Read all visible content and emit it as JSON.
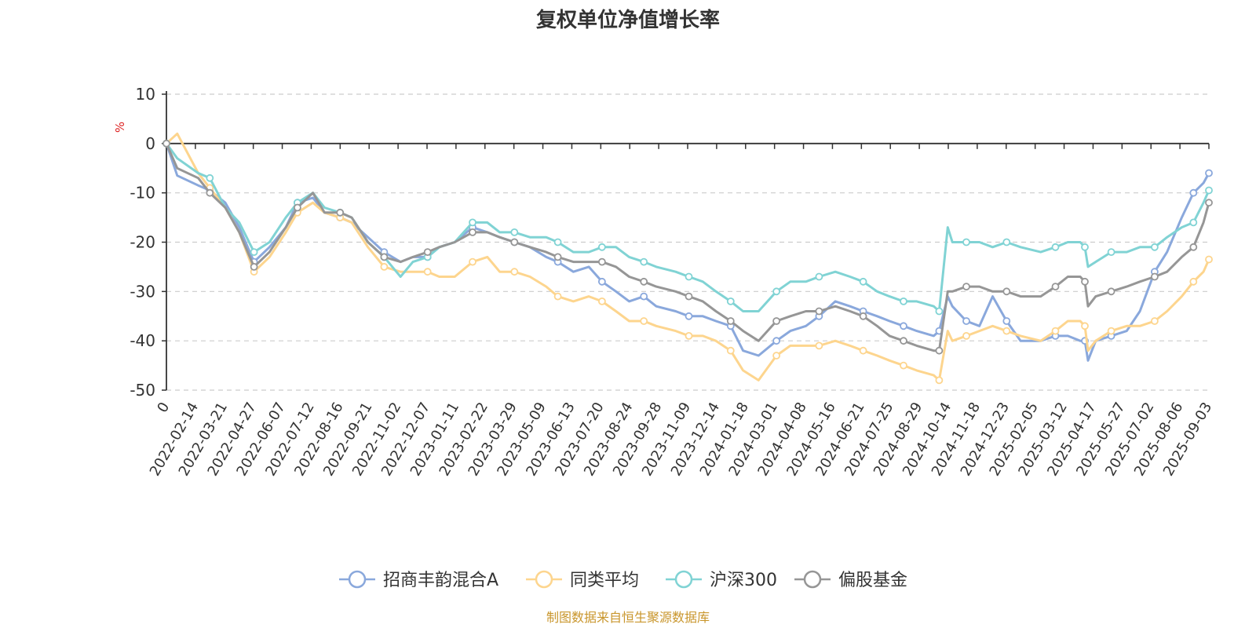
{
  "chart_data": {
    "type": "line",
    "title": "复权单位净值增长率",
    "ylabel": "%",
    "ylim": [
      -50,
      10
    ],
    "yticks": [
      "10",
      "0",
      "-10",
      "-20",
      "-30",
      "-40",
      "-50"
    ],
    "grid": true,
    "legend": "bottom-center",
    "x_ticks": [
      "0",
      "2022-02-14",
      "2022-03-21",
      "2022-04-27",
      "2022-06-07",
      "2022-07-12",
      "2022-08-16",
      "2022-09-21",
      "2022-11-02",
      "2022-12-07",
      "2023-01-11",
      "2023-02-22",
      "2023-03-29",
      "2023-05-09",
      "2023-06-13",
      "2023-07-20",
      "2023-08-24",
      "2023-09-28",
      "2023-11-09",
      "2023-12-14",
      "2024-01-18",
      "2024-03-01",
      "2024-04-08",
      "2024-05-16",
      "2024-06-21",
      "2024-07-25",
      "2024-08-29",
      "2024-10-14",
      "2024-11-18",
      "2024-12-23",
      "2025-02-05",
      "2025-03-12",
      "2025-04-17",
      "2025-05-27",
      "2025-07-02",
      "2025-08-06",
      "2025-09-03"
    ],
    "x": [
      "2022-01-04",
      "2022-01-18",
      "2022-02-14",
      "2022-03-01",
      "2022-03-21",
      "2022-04-08",
      "2022-04-27",
      "2022-05-17",
      "2022-06-07",
      "2022-06-22",
      "2022-07-12",
      "2022-07-27",
      "2022-08-16",
      "2022-08-31",
      "2022-09-21",
      "2022-10-12",
      "2022-11-02",
      "2022-11-18",
      "2022-12-07",
      "2022-12-22",
      "2023-01-11",
      "2023-02-03",
      "2023-02-22",
      "2023-03-10",
      "2023-03-29",
      "2023-04-18",
      "2023-05-09",
      "2023-05-24",
      "2023-06-13",
      "2023-07-03",
      "2023-07-20",
      "2023-08-07",
      "2023-08-24",
      "2023-09-12",
      "2023-09-28",
      "2023-10-23",
      "2023-11-09",
      "2023-11-27",
      "2023-12-14",
      "2024-01-02",
      "2024-01-18",
      "2024-02-07",
      "2024-03-01",
      "2024-03-19",
      "2024-04-08",
      "2024-04-25",
      "2024-05-16",
      "2024-06-04",
      "2024-06-21",
      "2024-07-09",
      "2024-07-25",
      "2024-08-12",
      "2024-08-29",
      "2024-09-20",
      "2024-09-27",
      "2024-10-08",
      "2024-10-14",
      "2024-11-01",
      "2024-11-18",
      "2024-12-05",
      "2024-12-23",
      "2025-01-10",
      "2025-02-05",
      "2025-02-24",
      "2025-03-12",
      "2025-03-28",
      "2025-04-03",
      "2025-04-07",
      "2025-04-17",
      "2025-05-07",
      "2025-05-27",
      "2025-06-13",
      "2025-07-02",
      "2025-07-18",
      "2025-08-06",
      "2025-08-21",
      "2025-09-03",
      "2025-09-10"
    ],
    "series": [
      {
        "name": "招商丰韵混合A",
        "color": "#8aa8dc",
        "values": [
          0,
          -6.5,
          -8.5,
          -9.5,
          -12,
          -17,
          -24,
          -21,
          -17,
          -12,
          -11,
          -14,
          -15,
          -16,
          -19,
          -22,
          -24,
          -23,
          -23,
          -21,
          -20,
          -17,
          -18,
          -19,
          -20,
          -21,
          -23,
          -24,
          -26,
          -25,
          -28,
          -30,
          -32,
          -31,
          -33,
          -34,
          -35,
          -35,
          -36,
          -37,
          -42,
          -43,
          -40,
          -38,
          -37,
          -35,
          -32,
          -33,
          -34,
          -35,
          -36,
          -37,
          -38,
          -39,
          -38,
          -31,
          -33,
          -36,
          -37,
          -31,
          -36,
          -40,
          -40,
          -39,
          -39,
          -40,
          -40,
          -44,
          -40,
          -39,
          -38,
          -34,
          -26,
          -22,
          -15,
          -10,
          -8,
          -6
        ]
      },
      {
        "name": "同类平均",
        "color": "#fdd58e",
        "values": [
          0,
          2,
          -6,
          -9,
          -13,
          -18,
          -26,
          -23,
          -18,
          -14,
          -12,
          -14,
          -15,
          -16,
          -21,
          -25,
          -26,
          -26,
          -26,
          -27,
          -27,
          -24,
          -23,
          -26,
          -26,
          -27,
          -29,
          -31,
          -32,
          -31,
          -32,
          -34,
          -36,
          -36,
          -37,
          -38,
          -39,
          -39,
          -40,
          -42,
          -46,
          -48,
          -43,
          -41,
          -41,
          -41,
          -40,
          -41,
          -42,
          -43,
          -44,
          -45,
          -46,
          -47,
          -48,
          -38,
          -40,
          -39,
          -38,
          -37,
          -38,
          -39,
          -40,
          -38,
          -36,
          -36,
          -37,
          -42,
          -40,
          -38,
          -37,
          -37,
          -36,
          -34,
          -31,
          -28,
          -26,
          -23.5
        ]
      },
      {
        "name": "沪深300",
        "color": "#80d3d4",
        "values": [
          0,
          -3,
          -6,
          -7,
          -13,
          -16,
          -22,
          -20,
          -15,
          -12,
          -10,
          -13,
          -14,
          -15,
          -20,
          -23,
          -27,
          -24,
          -23,
          -21,
          -20,
          -16,
          -16,
          -18,
          -18,
          -19,
          -19,
          -20,
          -22,
          -22,
          -21,
          -21,
          -23,
          -24,
          -25,
          -26,
          -27,
          -28,
          -30,
          -32,
          -34,
          -34,
          -30,
          -28,
          -28,
          -27,
          -26,
          -27,
          -28,
          -30,
          -31,
          -32,
          -32,
          -33,
          -34,
          -17,
          -20,
          -20,
          -20,
          -21,
          -20,
          -21,
          -22,
          -21,
          -20,
          -20,
          -21,
          -25,
          -24,
          -22,
          -22,
          -21,
          -21,
          -19,
          -17,
          -16,
          -12,
          -9.5
        ]
      },
      {
        "name": "偏股基金",
        "color": "#969696",
        "values": [
          0,
          -5,
          -7,
          -10,
          -13,
          -18,
          -25,
          -22,
          -17,
          -13,
          -10,
          -14,
          -14,
          -15,
          -20,
          -23,
          -24,
          -23,
          -22,
          -21,
          -20,
          -18,
          -18,
          -19,
          -20,
          -21,
          -22,
          -23,
          -24,
          -24,
          -24,
          -25,
          -27,
          -28,
          -29,
          -30,
          -31,
          -32,
          -34,
          -36,
          -38,
          -40,
          -36,
          -35,
          -34,
          -34,
          -33,
          -34,
          -35,
          -37,
          -39,
          -40,
          -41,
          -42,
          -42,
          -30,
          -30,
          -29,
          -29,
          -30,
          -30,
          -31,
          -31,
          -29,
          -27,
          -27,
          -28,
          -33,
          -31,
          -30,
          -29,
          -28,
          -27,
          -26,
          -23,
          -21,
          -16,
          -12
        ]
      }
    ]
  },
  "source_note": "制图数据来自恒生聚源数据库"
}
